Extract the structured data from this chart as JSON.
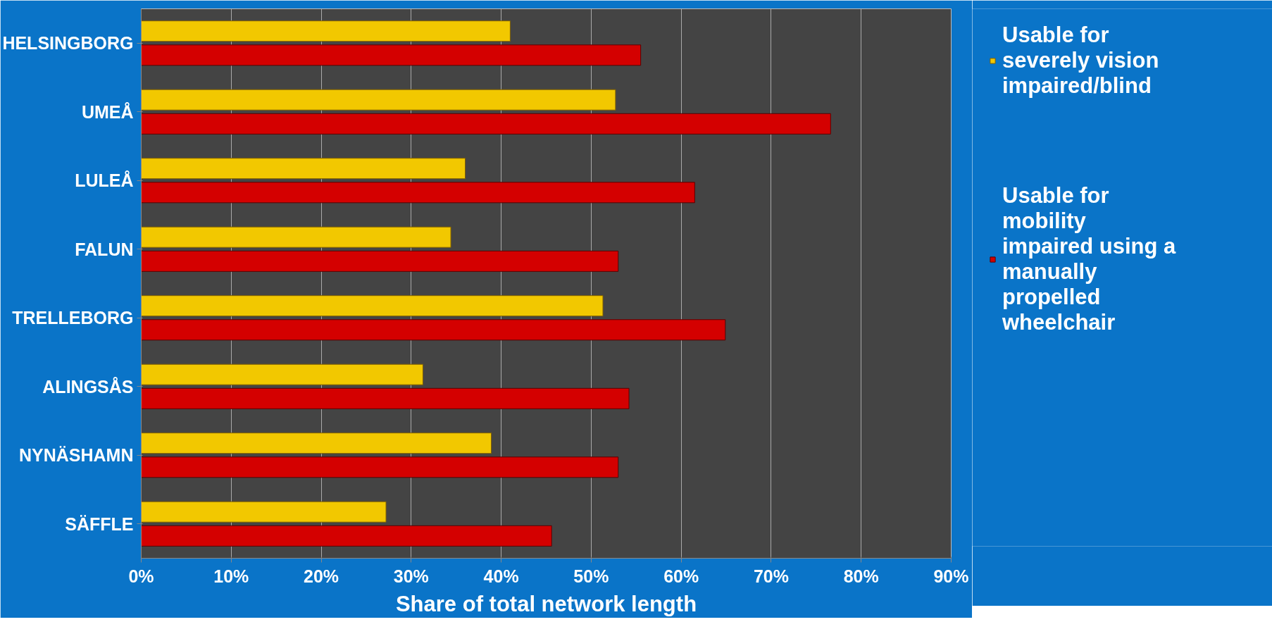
{
  "chart_data": {
    "type": "bar",
    "orientation": "horizontal",
    "xlabel": "Share of total network length",
    "categories": [
      "HELSINGBORG",
      "UMEÅ",
      "LULEÅ",
      "FALUN",
      "TRELLEBORG",
      "ALINGSÅS",
      "NYNÄSHAMN",
      "SÄFFLE"
    ],
    "series": [
      {
        "name": "Usable for severely vision impaired/blind",
        "color": "#f2c800",
        "values": [
          41,
          52.7,
          36,
          34.4,
          51.3,
          31.3,
          38.9,
          27.2
        ]
      },
      {
        "name": "Usable for mobility impaired using a manually propelled wheelchair",
        "color": "#d40000",
        "values": [
          55.5,
          76.6,
          61.5,
          53,
          64.9,
          54.2,
          53,
          45.6
        ]
      }
    ],
    "xlim": [
      0,
      90
    ],
    "xticks": [
      {
        "value": 0,
        "label": "0%"
      },
      {
        "value": 10,
        "label": "10%"
      },
      {
        "value": 20,
        "label": "20%"
      },
      {
        "value": 30,
        "label": "30%"
      },
      {
        "value": 40,
        "label": "40%"
      },
      {
        "value": 50,
        "label": "50%"
      },
      {
        "value": 60,
        "label": "60%"
      },
      {
        "value": 70,
        "label": "70%"
      },
      {
        "value": 80,
        "label": "80%"
      },
      {
        "value": 90,
        "label": "90%"
      }
    ],
    "grid": "x",
    "legend": "right"
  }
}
